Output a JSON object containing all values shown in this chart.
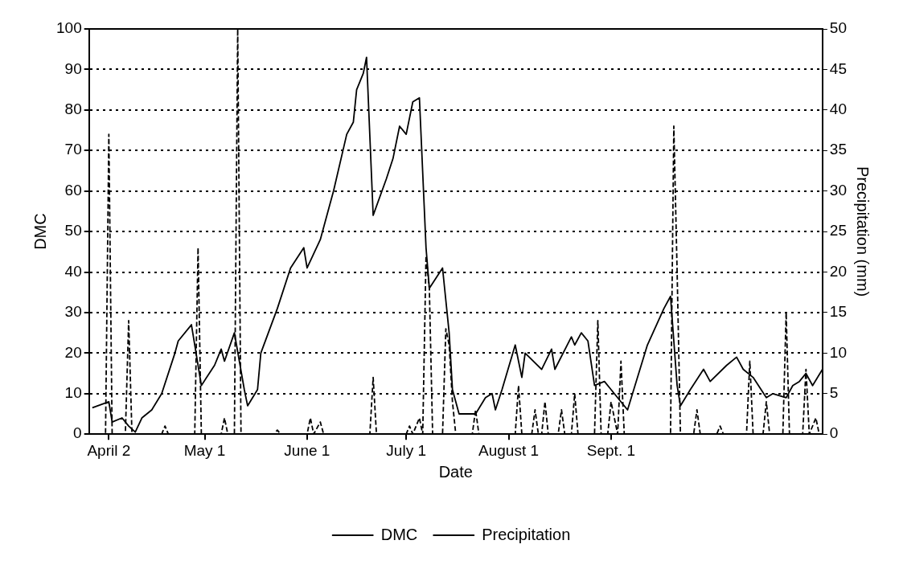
{
  "chart_data": {
    "type": "line",
    "xlabel": "Date",
    "ylabel": "DMC",
    "y2label": "Precipitation (mm)",
    "xlim": [
      "--03-27",
      "--11-04"
    ],
    "xticks": [
      {
        "value": "--04-02",
        "label": "April 2"
      },
      {
        "value": "--05-01",
        "label": "May 1"
      },
      {
        "value": "--06-01",
        "label": "June 1"
      },
      {
        "value": "--07-01",
        "label": "July 1"
      },
      {
        "value": "--08-01",
        "label": "August 1"
      },
      {
        "value": "--09-01",
        "label": "Sept. 1"
      }
    ],
    "ylim": [
      0,
      100
    ],
    "yticks": [
      0,
      10,
      20,
      30,
      40,
      50,
      60,
      70,
      80,
      90,
      100
    ],
    "y2lim": [
      0,
      50
    ],
    "y2ticks": [
      0,
      5,
      10,
      15,
      20,
      25,
      30,
      35,
      40,
      45,
      50
    ],
    "grid": "y",
    "legend": "bottom",
    "marker": "none",
    "series": [
      {
        "name": "DMC",
        "color": "#000000",
        "line_style": "solid",
        "x": [
          "--03-28",
          "--04-02",
          "--04-03",
          "--04-06",
          "--04-08",
          "--04-10",
          "--04-12",
          "--04-15",
          "--04-18",
          "--04-22",
          "--04-23",
          "--04-27",
          "--04-30",
          "--05-04",
          "--05-06",
          "--05-07",
          "--05-10",
          "--05-13",
          "--05-14",
          "--05-17",
          "--05-18",
          "--05-23",
          "--05-27",
          "--05-31",
          "--06-01",
          "--06-05",
          "--06-09",
          "--06-13",
          "--06-15",
          "--06-16",
          "--06-18",
          "--06-19",
          "--06-21",
          "--06-25",
          "--06-27",
          "--06-29",
          "--07-01",
          "--07-03",
          "--07-05",
          "--07-07",
          "--07-08",
          "--07-12",
          "--07-14",
          "--07-15",
          "--07-17",
          "--07-22",
          "--07-25",
          "--07-27",
          "--07-28",
          "--07-30",
          "--08-03",
          "--08-05",
          "--08-06",
          "--08-11",
          "--08-14",
          "--08-15",
          "--08-20",
          "--08-21",
          "--08-23",
          "--08-25",
          "--08-27",
          "--08-30",
          "--09-01",
          "--09-06",
          "--09-12",
          "--09-17",
          "--09-19",
          "--09-21",
          "--09-22",
          "--09-25",
          "--09-29",
          "--10-01",
          "--10-06",
          "--10-09",
          "--10-11",
          "--10-14",
          "--10-18",
          "--10-20",
          "--10-24",
          "--10-26",
          "--10-28",
          "--10-30",
          "--11-01",
          "--11-04"
        ],
        "values": [
          6.5,
          8,
          3,
          4,
          2,
          0.5,
          4,
          6,
          10,
          20,
          23,
          27,
          12,
          17,
          21,
          18,
          25,
          11,
          7,
          11,
          20,
          31,
          41,
          46,
          41,
          48,
          60,
          74,
          77,
          85,
          89,
          93,
          54,
          63,
          68,
          76,
          74,
          82,
          83,
          46,
          36,
          41,
          25,
          11,
          5,
          5,
          9,
          10,
          6,
          11,
          22,
          14,
          20,
          16,
          21,
          16,
          24,
          22,
          25,
          23,
          12,
          13,
          11,
          6,
          22,
          31,
          34,
          12,
          7,
          11,
          16,
          13,
          17,
          19,
          16,
          14,
          9,
          10,
          9,
          12,
          13,
          15,
          12,
          16
        ]
      },
      {
        "name": "Precipitation",
        "color": "#000000",
        "line_style": "dashed",
        "axis": "y2",
        "x": [
          "--03-28",
          "--04-01",
          "--04-02",
          "--04-03",
          "--04-07",
          "--04-08",
          "--04-09",
          "--04-18",
          "--04-19",
          "--04-20",
          "--04-28",
          "--04-29",
          "--04-30",
          "--05-06",
          "--05-07",
          "--05-08",
          "--05-10",
          "--05-11",
          "--05-12",
          "--05-22",
          "--05-23",
          "--05-24",
          "--06-01",
          "--06-02",
          "--06-03",
          "--06-05",
          "--06-06",
          "--06-20",
          "--06-21",
          "--06-22",
          "--07-01",
          "--07-02",
          "--07-03",
          "--07-05",
          "--07-06",
          "--07-07",
          "--07-08",
          "--07-09",
          "--07-12",
          "--07-13",
          "--07-14",
          "--07-15",
          "--07-16",
          "--07-21",
          "--07-22",
          "--07-23",
          "--08-03",
          "--08-04",
          "--08-05",
          "--08-08",
          "--08-09",
          "--08-10",
          "--08-11",
          "--08-12",
          "--08-13",
          "--08-16",
          "--08-17",
          "--08-18",
          "--08-20",
          "--08-21",
          "--08-22",
          "--08-27",
          "--08-28",
          "--08-29",
          "--08-31",
          "--09-01",
          "--09-03",
          "--09-04",
          "--09-05",
          "--09-19",
          "--09-20",
          "--09-21",
          "--09-22",
          "--09-26",
          "--09-27",
          "--09-28",
          "--10-03",
          "--10-04",
          "--10-05",
          "--10-12",
          "--10-13",
          "--10-14",
          "--10-17",
          "--10-18",
          "--10-19",
          "--10-23",
          "--10-24",
          "--10-25",
          "--10-29",
          "--10-30",
          "--10-31",
          "--11-02",
          "--11-03"
        ],
        "values": [
          0,
          0,
          37,
          0,
          0,
          14,
          0,
          0,
          1,
          0,
          0,
          23,
          0,
          0,
          2,
          0,
          0,
          50,
          0,
          0,
          0.5,
          0,
          0,
          2,
          0,
          1.5,
          0,
          0,
          7,
          0,
          0,
          1,
          0,
          2,
          0,
          22,
          18,
          0,
          0,
          13,
          11,
          4,
          0,
          0,
          3,
          0,
          0,
          6,
          0,
          0,
          3,
          0,
          0,
          4,
          0,
          0,
          3,
          0,
          0,
          5,
          0,
          0,
          14,
          0,
          0,
          4,
          0,
          9,
          0,
          0,
          38,
          20,
          0,
          0,
          3,
          0,
          0,
          1,
          0,
          0,
          9,
          0,
          0,
          4,
          0,
          0,
          15,
          0,
          0,
          8,
          0,
          2,
          0
        ]
      }
    ]
  }
}
